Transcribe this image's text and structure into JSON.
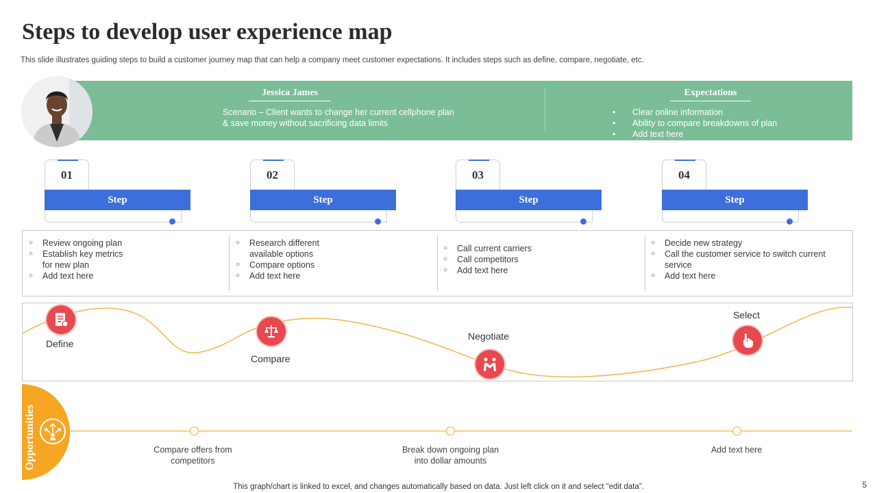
{
  "header": {
    "title": "Steps to develop user experience map",
    "subtitle": "This slide illustrates guiding steps to build a customer journey map that can help a company meet customer expectations. It includes steps such as define, compare, negotiate, etc."
  },
  "persona": {
    "name": "Jessica James",
    "scenario": "Scenario – Client wants to change her current cellphone plan & save money without sacrificing data limits"
  },
  "expectations": {
    "title": "Expectations",
    "items": [
      "Clear online information",
      "Ability to compare breakdowns of plan",
      "Add text here"
    ]
  },
  "steps": [
    {
      "number": "01",
      "label": "Step"
    },
    {
      "number": "02",
      "label": "Step"
    },
    {
      "number": "03",
      "label": "Step"
    },
    {
      "number": "04",
      "label": "Step"
    }
  ],
  "details": [
    [
      "Review ongoing plan",
      "Establish key metrics for new plan",
      "Add text here"
    ],
    [
      "Research different available options",
      "Compare options",
      "Add text here"
    ],
    [
      "Call current carriers",
      "Call competitors",
      "Add text here"
    ],
    [
      "Decide new strategy",
      "Call the customer service to switch current service",
      "Add text here"
    ]
  ],
  "stages": [
    {
      "label": "Define",
      "icon": "document-icon"
    },
    {
      "label": "Compare",
      "icon": "scales-icon"
    },
    {
      "label": "Negotiate",
      "icon": "handshake-icon"
    },
    {
      "label": "Select",
      "icon": "hand-pointer-icon"
    }
  ],
  "opportunities": {
    "title": "Opportunities",
    "items": [
      "Compare offers from competitors",
      "Break down ongoing plan into dollar amounts",
      "Add text here"
    ]
  },
  "colors": {
    "banner": "#7abd96",
    "step_blue": "#3c6fdc",
    "stage_red": "#e8494f",
    "opportunity_orange": "#f6a623"
  },
  "footer": {
    "note": "This graph/chart is linked to excel, and changes automatically based on data. Just left click on it and select “edit data”.",
    "page": "5"
  }
}
